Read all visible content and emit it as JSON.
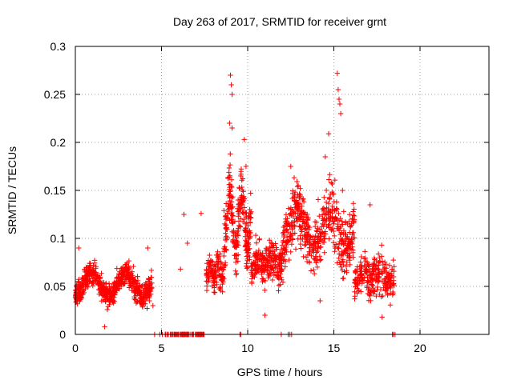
{
  "chart_data": {
    "type": "scatter",
    "title": "Day 263 of 2017, SRMTID for receiver grnt",
    "xlabel": "GPS time / hours",
    "ylabel": "SRMTID / TECUs",
    "xlim": [
      0,
      24
    ],
    "ylim": [
      0,
      0.3
    ],
    "xticks": [
      0,
      5,
      10,
      15,
      20
    ],
    "xtick_labels": [
      "0",
      "5",
      "10",
      "15",
      "20"
    ],
    "yticks": [
      0,
      0.05,
      0.1,
      0.15,
      0.2,
      0.25,
      0.3
    ],
    "ytick_labels": [
      "0",
      "0.05",
      "0.1",
      "0.15",
      "0.2",
      "0.25",
      "0.3"
    ],
    "grid": true,
    "marker": "+",
    "color": "#ff0000",
    "series": [
      {
        "name": "SRMTID",
        "segments": [
          {
            "t0": 0.0,
            "t1": 4.45,
            "base": 0.04,
            "bump": 0.025,
            "noise": 0.012,
            "count": 640
          },
          {
            "t0": 5.2,
            "t1": 7.5,
            "value": 0.0,
            "count": 80
          },
          {
            "t0": 7.6,
            "t1": 8.6,
            "base": 0.058,
            "bump": 0.015,
            "noise": 0.015,
            "count": 120
          },
          {
            "t0": 8.6,
            "t1": 10.2,
            "base": 0.09,
            "bump": 0.06,
            "noise": 0.03,
            "count": 260
          },
          {
            "t0": 10.2,
            "t1": 12.0,
            "base": 0.07,
            "bump": 0.01,
            "noise": 0.02,
            "count": 230
          },
          {
            "t0": 12.0,
            "t1": 16.2,
            "base": 0.09,
            "bump": 0.04,
            "noise": 0.03,
            "count": 520
          },
          {
            "t0": 16.2,
            "t1": 18.5,
            "base": 0.055,
            "bump": 0.01,
            "noise": 0.02,
            "count": 260
          }
        ],
        "highlights": [
          {
            "x": 0.2,
            "y": 0.09
          },
          {
            "x": 6.3,
            "y": 0.125
          },
          {
            "x": 6.5,
            "y": 0.095
          },
          {
            "x": 7.3,
            "y": 0.126
          },
          {
            "x": 6.1,
            "y": 0.068
          },
          {
            "x": 9.0,
            "y": 0.27
          },
          {
            "x": 9.05,
            "y": 0.26
          },
          {
            "x": 9.1,
            "y": 0.25
          },
          {
            "x": 8.95,
            "y": 0.22
          },
          {
            "x": 9.1,
            "y": 0.215
          },
          {
            "x": 9.6,
            "y": 0.165
          },
          {
            "x": 9.8,
            "y": 0.203
          },
          {
            "x": 9.9,
            "y": 0.175
          },
          {
            "x": 12.5,
            "y": 0.175
          },
          {
            "x": 14.5,
            "y": 0.185
          },
          {
            "x": 14.7,
            "y": 0.209
          },
          {
            "x": 15.2,
            "y": 0.272
          },
          {
            "x": 15.25,
            "y": 0.255
          },
          {
            "x": 15.3,
            "y": 0.245
          },
          {
            "x": 15.35,
            "y": 0.24
          },
          {
            "x": 15.4,
            "y": 0.23
          },
          {
            "x": 15.5,
            "y": 0.15
          },
          {
            "x": 11.0,
            "y": 0.02
          },
          {
            "x": 14.2,
            "y": 0.035
          },
          {
            "x": 17.8,
            "y": 0.018
          },
          {
            "x": 1.7,
            "y": 0.008
          },
          {
            "x": 4.3,
            "y": 0.035
          },
          {
            "x": 4.5,
            "y": 0.03
          },
          {
            "x": 4.2,
            "y": 0.09
          },
          {
            "x": 17.1,
            "y": 0.135
          }
        ],
        "zeros": [
          4.6,
          4.9,
          5.05,
          9.55,
          9.6,
          11.95,
          12.35,
          12.45,
          12.55,
          18.4,
          18.45,
          18.55
        ]
      }
    ]
  }
}
